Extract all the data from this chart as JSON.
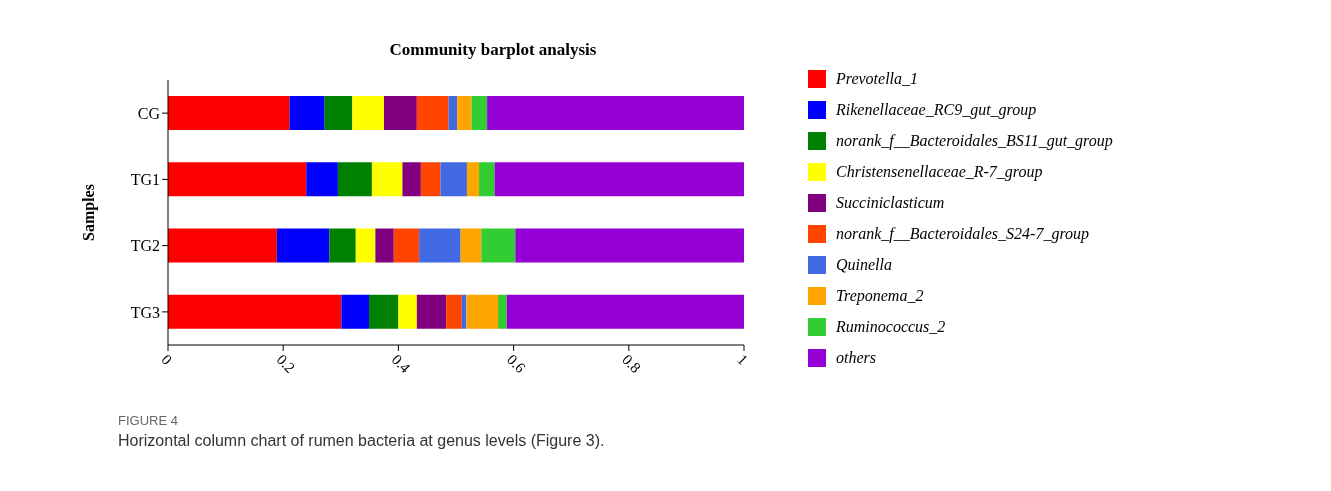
{
  "chart_data": {
    "type": "bar",
    "orientation": "horizontal",
    "stacked": true,
    "title": "Community barplot analysis",
    "ylabel": "Samples",
    "categories": [
      "CG",
      "TG1",
      "TG2",
      "TG3"
    ],
    "series": [
      {
        "name": "Prevotella_1",
        "color": "#ff0000",
        "values": [
          0.211,
          0.24,
          0.189,
          0.301
        ]
      },
      {
        "name": "Rikenellaceae_RC9_gut_group",
        "color": "#0000ff",
        "values": [
          0.061,
          0.055,
          0.091,
          0.048
        ]
      },
      {
        "name": "norank_f__Bacteroidales_BS11_gut_group",
        "color": "#008000",
        "values": [
          0.048,
          0.059,
          0.046,
          0.051
        ]
      },
      {
        "name": "Christensenellaceae_R-7_group",
        "color": "#ffff00",
        "values": [
          0.055,
          0.053,
          0.034,
          0.032
        ]
      },
      {
        "name": "Succiniclasticum",
        "color": "#800080",
        "values": [
          0.057,
          0.032,
          0.032,
          0.051
        ]
      },
      {
        "name": "norank_f__Bacteroidales_S24-7_group",
        "color": "#ff4500",
        "values": [
          0.055,
          0.034,
          0.044,
          0.027
        ]
      },
      {
        "name": "Quinella",
        "color": "#4169e1",
        "values": [
          0.015,
          0.046,
          0.072,
          0.008
        ]
      },
      {
        "name": "Treponema_2",
        "color": "#ffa500",
        "values": [
          0.025,
          0.021,
          0.036,
          0.055
        ]
      },
      {
        "name": "Ruminococcus_2",
        "color": "#32cd32",
        "values": [
          0.027,
          0.027,
          0.059,
          0.015
        ]
      },
      {
        "name": "others",
        "color": "#9400d3",
        "values": [
          0.446,
          0.434,
          0.398,
          0.413
        ]
      }
    ],
    "xlim": [
      0,
      1
    ],
    "xticks": [
      0,
      0.2,
      0.4,
      0.6,
      0.8,
      1
    ],
    "grid": false,
    "legend": "right",
    "annotations": [
      "FIGURE 4",
      "Horizontal column chart of rumen bacteria at genus levels (Figure 3)."
    ]
  }
}
